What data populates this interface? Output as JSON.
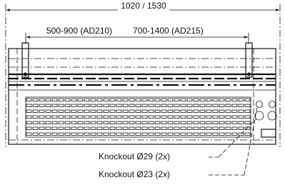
{
  "dimensions": {
    "overall": "1020 / 1530",
    "span_ad210": "500-900 (AD210)",
    "span_ad215": "700-1400 (AD215)"
  },
  "callouts": {
    "knockout_large": "Knockout Ø29 (2x)",
    "knockout_small": "Knockout Ø23 (2x)"
  }
}
